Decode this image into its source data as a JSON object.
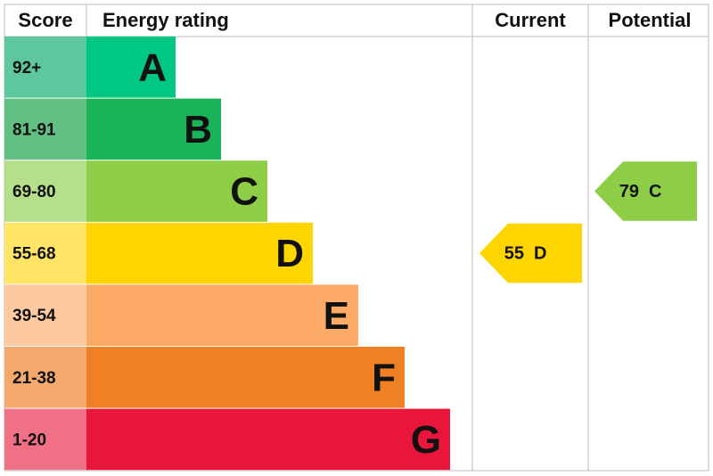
{
  "header": {
    "score": "Score",
    "rating": "Energy rating",
    "current": "Current",
    "potential": "Potential"
  },
  "bands": [
    {
      "score": "92+",
      "letter": "A",
      "color": "#00c781",
      "light": "#5ec79e"
    },
    {
      "score": "81-91",
      "letter": "B",
      "color": "#19b459",
      "light": "#62bf84"
    },
    {
      "score": "69-80",
      "letter": "C",
      "color": "#8dce46",
      "light": "#b6df8c"
    },
    {
      "score": "55-68",
      "letter": "D",
      "color": "#ffd500",
      "light": "#ffe466"
    },
    {
      "score": "39-54",
      "letter": "E",
      "color": "#fcaa65",
      "light": "#fdc9a0"
    },
    {
      "score": "21-38",
      "letter": "F",
      "color": "#ef8023",
      "light": "#f3a96c"
    },
    {
      "score": "1-20",
      "letter": "G",
      "color": "#e9153b",
      "light": "#f07086"
    }
  ],
  "current": {
    "score": 55,
    "letter": "D"
  },
  "potential": {
    "score": 79,
    "letter": "C"
  }
}
